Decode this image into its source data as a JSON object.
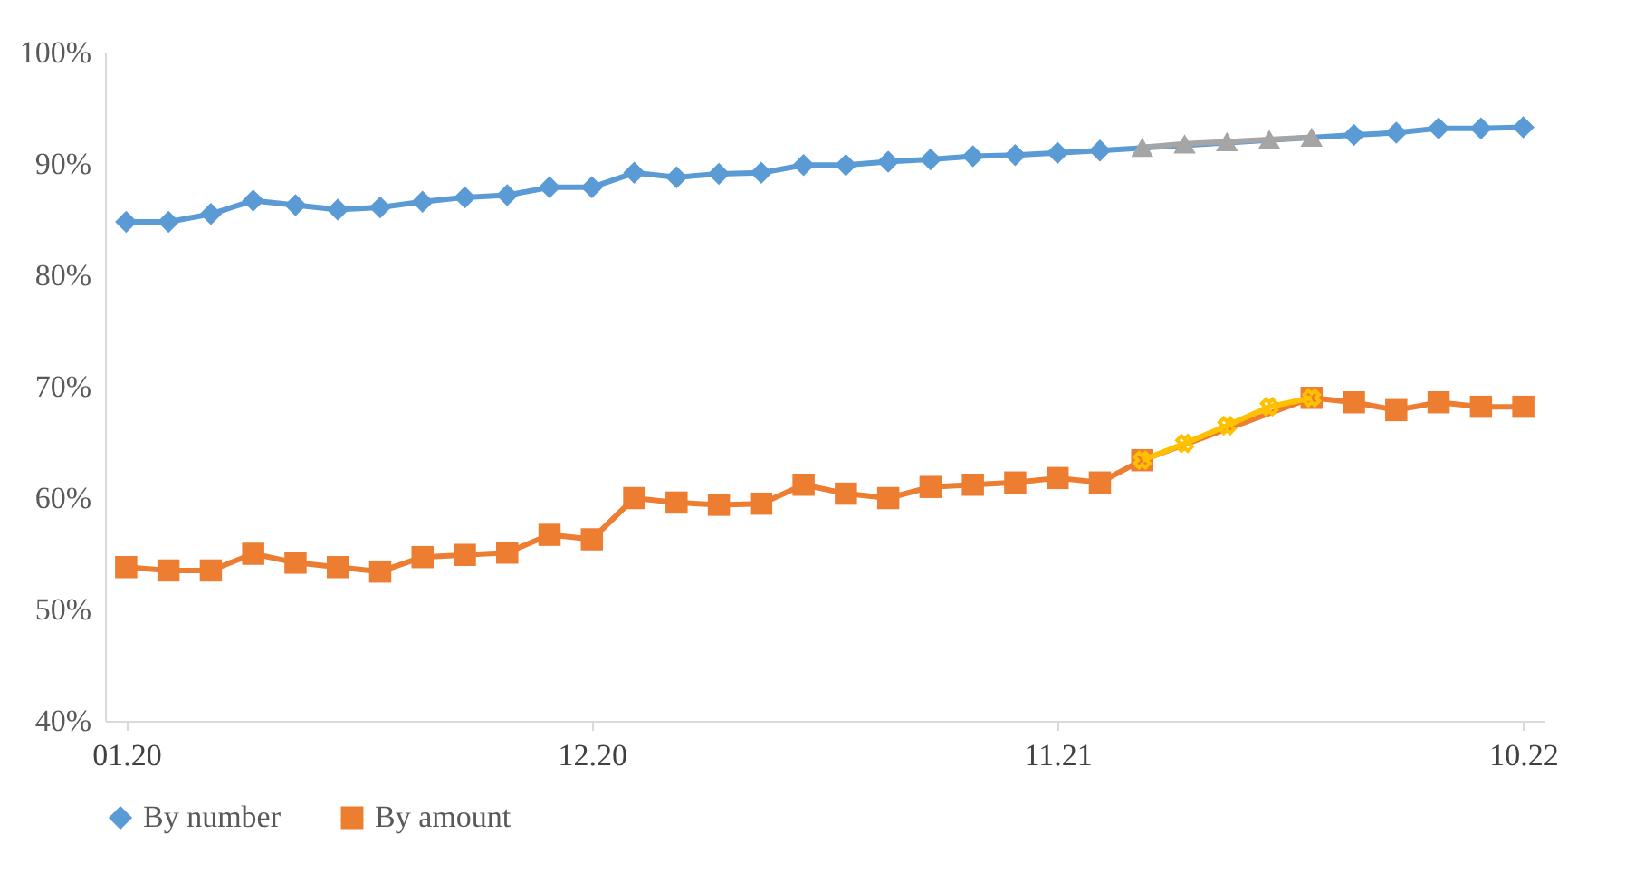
{
  "chart_data": {
    "type": "line",
    "categories": [
      "01.20",
      null,
      null,
      null,
      null,
      null,
      null,
      null,
      null,
      null,
      null,
      "12.20",
      null,
      null,
      null,
      null,
      null,
      null,
      null,
      null,
      null,
      null,
      "11.21",
      null,
      null,
      null,
      null,
      null,
      null,
      null,
      null,
      null,
      null,
      "10.22"
    ],
    "ylim": [
      40,
      100
    ],
    "yticks": [
      {
        "value": 40,
        "label": "40%"
      },
      {
        "value": 50,
        "label": "50%"
      },
      {
        "value": 60,
        "label": "60%"
      },
      {
        "value": 70,
        "label": "70%"
      },
      {
        "value": 80,
        "label": "80%"
      },
      {
        "value": 90,
        "label": "90%"
      },
      {
        "value": 100,
        "label": "100%"
      }
    ],
    "grid": false,
    "legend": "bottom",
    "line_style": "solid",
    "series": [
      {
        "name": "By number",
        "color": "#5b9bd5",
        "marker": "diamond",
        "values": [
          84.8,
          84.8,
          85.5,
          86.7,
          86.3,
          85.9,
          86.1,
          86.6,
          87.0,
          87.2,
          87.9,
          87.9,
          89.2,
          88.8,
          89.1,
          89.2,
          89.9,
          89.9,
          90.2,
          90.4,
          90.7,
          90.8,
          91.0,
          91.2,
          null,
          null,
          null,
          null,
          null,
          92.6,
          92.8,
          93.2,
          93.2,
          93.3
        ]
      },
      {
        "color": "#a5a5a5",
        "marker": "triangle",
        "values": [
          null,
          null,
          null,
          null,
          null,
          null,
          null,
          null,
          null,
          null,
          null,
          null,
          null,
          null,
          null,
          null,
          null,
          null,
          null,
          null,
          null,
          null,
          null,
          null,
          91.5,
          91.8,
          92.0,
          92.2,
          92.4,
          null,
          null,
          null,
          null,
          null
        ]
      },
      {
        "name": "By amount",
        "color": "#ed7d31",
        "marker": "square",
        "values": [
          53.8,
          53.5,
          53.5,
          55.0,
          54.2,
          53.8,
          53.4,
          54.7,
          54.9,
          55.1,
          56.7,
          56.3,
          60.0,
          59.6,
          59.4,
          59.5,
          61.2,
          60.4,
          60.0,
          61.0,
          61.2,
          61.4,
          61.8,
          61.4,
          63.4,
          null,
          null,
          null,
          69.0,
          68.6,
          67.9,
          68.6,
          68.2,
          68.2
        ]
      },
      {
        "color": "#ffc000",
        "marker": "cross",
        "values": [
          null,
          null,
          null,
          null,
          null,
          null,
          null,
          null,
          null,
          null,
          null,
          null,
          null,
          null,
          null,
          null,
          null,
          null,
          null,
          null,
          null,
          null,
          null,
          null,
          63.4,
          64.9,
          66.5,
          68.2,
          69.0,
          null,
          null,
          null,
          null,
          null
        ]
      }
    ]
  }
}
